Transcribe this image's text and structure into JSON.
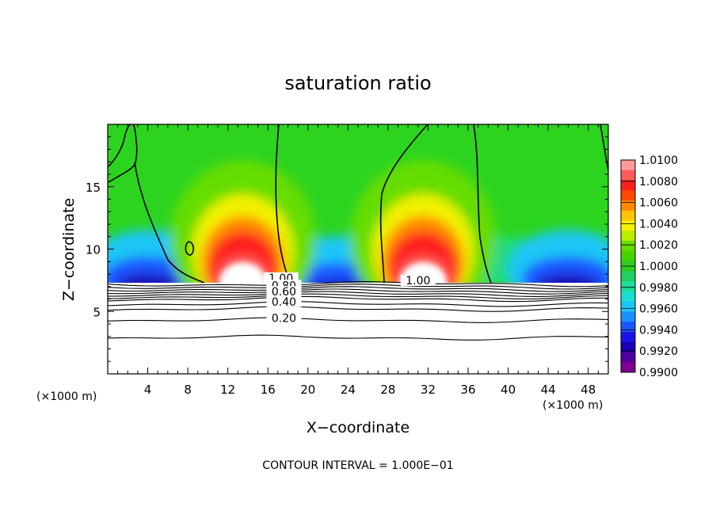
{
  "chart_data": {
    "type": "heatmap",
    "title": "saturation ratio",
    "xlabel": "X−coordinate",
    "ylabel": "Z−coordinate",
    "x_unit_left": "(×1000 m)",
    "x_unit_right": "(×1000 m)",
    "footer": "CONTOUR INTERVAL = 1.000E−01",
    "xlim": [
      0,
      50
    ],
    "ylim": [
      0,
      20
    ],
    "x_ticks": [
      4,
      8,
      12,
      16,
      20,
      24,
      28,
      32,
      36,
      40,
      44,
      48
    ],
    "y_ticks": [
      5,
      10,
      15
    ],
    "colorbar": {
      "labels": [
        "1.0100",
        "1.0080",
        "1.0060",
        "1.0040",
        "1.0020",
        "1.0000",
        "0.9980",
        "0.9960",
        "0.9940",
        "0.9920",
        "0.9900"
      ],
      "colors": [
        "#ff9a9a",
        "#ff5a5a",
        "#ff1e1e",
        "#ff4a00",
        "#ff8800",
        "#ffc400",
        "#f2f200",
        "#b8ee00",
        "#66dd00",
        "#44d400",
        "#2ccd20",
        "#20d060",
        "#1fdd9a",
        "#16e0d0",
        "#1cc6f6",
        "#1a90ff",
        "#1a55ff",
        "#1a14e6",
        "#1a00b4",
        "#50009c",
        "#7d0090"
      ]
    },
    "contour_labels": [
      {
        "label": "1.00",
        "x": 17.3,
        "z": 7.5
      },
      {
        "label": "0.80",
        "x": 17.6,
        "z": 6.9
      },
      {
        "label": "0.60",
        "x": 17.6,
        "z": 6.4
      },
      {
        "label": "0.40",
        "x": 17.6,
        "z": 5.6
      },
      {
        "label": "0.20",
        "x": 17.6,
        "z": 4.3
      },
      {
        "label": "1.00",
        "x": 31.0,
        "z": 7.3
      }
    ],
    "contour_levels_below": [
      7.2,
      7.0,
      6.8,
      6.6,
      6.4,
      6.2,
      6.0,
      5.6,
      5.2,
      4.3,
      2.9
    ],
    "warm_maxima": [
      {
        "x": 13.5,
        "z": 9.5
      },
      {
        "x": 31.5,
        "z": 9.5
      }
    ],
    "dry_minima": [
      {
        "x": 4.0,
        "z": 9.0
      },
      {
        "x": 23.0,
        "z": 8.5
      },
      {
        "x": 46.0,
        "z": 9.0
      }
    ]
  }
}
